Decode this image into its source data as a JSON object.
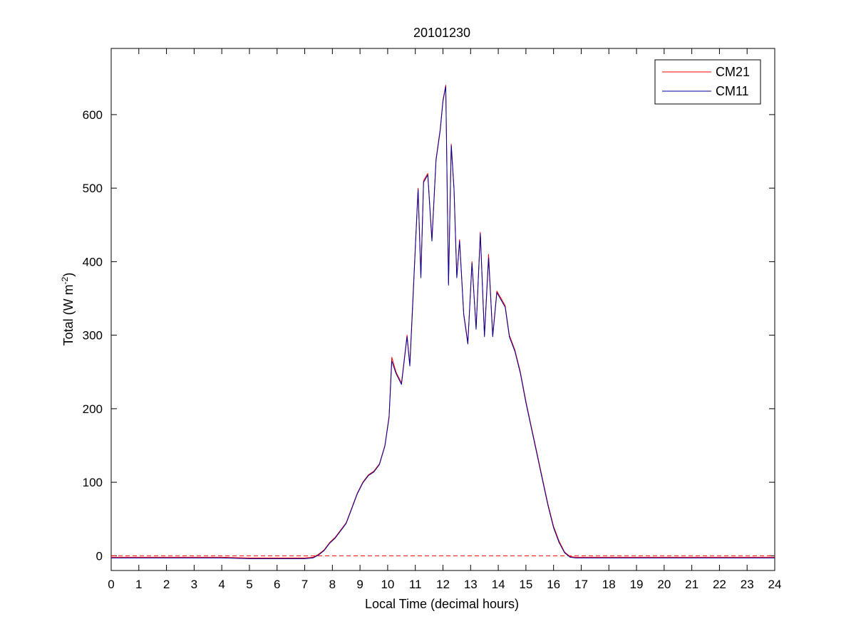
{
  "chart_data": {
    "type": "line",
    "title": "20101230",
    "xlabel": "Local Time (decimal hours)",
    "ylabel_main": "Total (W m",
    "ylabel_sup": "-2",
    "ylabel_close": ")",
    "xlim": [
      0,
      24
    ],
    "ylim": [
      -20,
      690
    ],
    "xticks": [
      0,
      1,
      2,
      3,
      4,
      5,
      6,
      7,
      8,
      9,
      10,
      11,
      12,
      13,
      14,
      15,
      16,
      17,
      18,
      19,
      20,
      21,
      22,
      23,
      24
    ],
    "yticks": [
      0,
      100,
      200,
      300,
      400,
      500,
      600
    ],
    "grid": false,
    "legend_position": "top-right",
    "reference_line": {
      "y": 0,
      "color": "#ff0000",
      "style": "dashed"
    },
    "series": [
      {
        "name": "CM21",
        "color": "#ff0000",
        "x": [
          0,
          1,
          2,
          3,
          4,
          5,
          6,
          7,
          7.3,
          7.5,
          7.7,
          7.9,
          8.1,
          8.3,
          8.5,
          8.7,
          8.9,
          9.1,
          9.3,
          9.5,
          9.7,
          9.9,
          10.05,
          10.15,
          10.3,
          10.5,
          10.7,
          10.8,
          10.9,
          11.0,
          11.1,
          11.2,
          11.3,
          11.45,
          11.6,
          11.75,
          11.9,
          12.0,
          12.1,
          12.2,
          12.3,
          12.4,
          12.5,
          12.6,
          12.75,
          12.9,
          13.05,
          13.2,
          13.35,
          13.5,
          13.65,
          13.8,
          13.95,
          14.1,
          14.25,
          14.4,
          14.6,
          14.8,
          15.0,
          15.2,
          15.4,
          15.6,
          15.8,
          16.0,
          16.2,
          16.4,
          16.6,
          16.8,
          17.0,
          17.2,
          17.5,
          18,
          19,
          20,
          21,
          22,
          23,
          24
        ],
        "y": [
          -2,
          -2,
          -2,
          -2,
          -2,
          -3,
          -3,
          -3,
          -2,
          2,
          8,
          18,
          25,
          35,
          45,
          65,
          85,
          100,
          110,
          115,
          125,
          150,
          190,
          270,
          250,
          235,
          300,
          260,
          340,
          420,
          500,
          380,
          510,
          520,
          430,
          540,
          580,
          620,
          640,
          370,
          560,
          500,
          380,
          430,
          330,
          290,
          400,
          310,
          440,
          300,
          410,
          300,
          360,
          350,
          340,
          300,
          280,
          250,
          210,
          175,
          140,
          105,
          70,
          40,
          20,
          5,
          -1,
          -2,
          -2,
          -2,
          -2,
          -2,
          -2,
          -2,
          -2,
          -2,
          -2,
          -2
        ]
      },
      {
        "name": "CM11",
        "color": "#000099",
        "x": [
          0,
          1,
          2,
          3,
          4,
          5,
          6,
          7,
          7.3,
          7.5,
          7.7,
          7.9,
          8.1,
          8.3,
          8.5,
          8.7,
          8.9,
          9.1,
          9.3,
          9.5,
          9.7,
          9.9,
          10.05,
          10.15,
          10.3,
          10.5,
          10.7,
          10.8,
          10.9,
          11.0,
          11.1,
          11.2,
          11.3,
          11.45,
          11.6,
          11.75,
          11.9,
          12.0,
          12.1,
          12.2,
          12.3,
          12.4,
          12.5,
          12.6,
          12.75,
          12.9,
          13.05,
          13.2,
          13.35,
          13.5,
          13.65,
          13.8,
          13.95,
          14.1,
          14.25,
          14.4,
          14.6,
          14.8,
          15.0,
          15.2,
          15.4,
          15.6,
          15.8,
          16.0,
          16.2,
          16.4,
          16.6,
          16.8,
          17.0,
          17.2,
          17.5,
          18,
          19,
          20,
          21,
          22,
          23,
          24
        ],
        "y": [
          -3,
          -3,
          -3,
          -3,
          -3,
          -4,
          -4,
          -4,
          -3,
          1,
          7,
          17,
          24,
          34,
          44,
          64,
          84,
          99,
          109,
          114,
          124,
          149,
          188,
          265,
          248,
          233,
          298,
          258,
          335,
          418,
          498,
          378,
          508,
          518,
          428,
          538,
          578,
          618,
          638,
          368,
          558,
          498,
          378,
          428,
          328,
          288,
          398,
          308,
          438,
          298,
          405,
          298,
          358,
          348,
          338,
          298,
          278,
          248,
          208,
          173,
          138,
          103,
          68,
          38,
          18,
          4,
          -2,
          -3,
          -3,
          -3,
          -3,
          -3,
          -3,
          -3,
          -3,
          -3,
          -3,
          -3
        ]
      }
    ]
  }
}
